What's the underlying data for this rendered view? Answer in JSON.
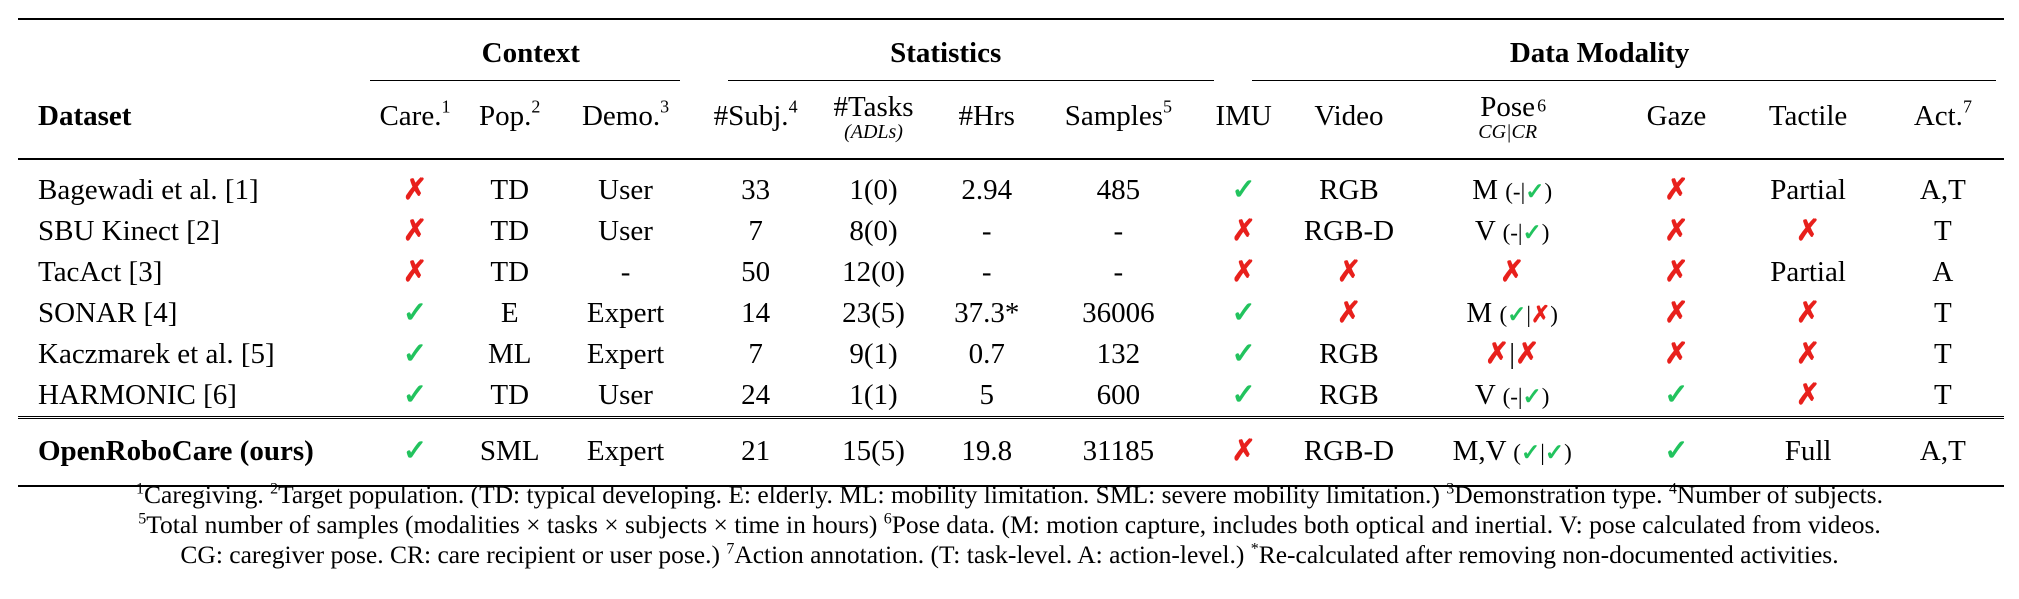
{
  "groups": {
    "context": "Context",
    "statistics": "Statistics",
    "modality": "Data Modality"
  },
  "headers": {
    "dataset": "Dataset",
    "care": "Care.",
    "care_sup": "1",
    "pop": "Pop.",
    "pop_sup": "2",
    "demo": "Demo.",
    "demo_sup": "3",
    "subj": "#Subj.",
    "subj_sup": "4",
    "tasks": "#Tasks",
    "tasks_sub": "(ADLs)",
    "hrs": "#Hrs",
    "samples": "Samples",
    "samples_sup": "5",
    "imu": "IMU",
    "video": "Video",
    "pose": "Pose",
    "pose_sub": "CG|CR",
    "pose_sup": "6",
    "gaze": "Gaze",
    "tactile": "Tactile",
    "act": "Act.",
    "act_sup": "7"
  },
  "symbols": {
    "check": "✓",
    "cross": "✗"
  },
  "rows": [
    {
      "name": "Bagewadi et al. [1]",
      "pop": "TD",
      "demo": "User",
      "subj": "33",
      "tasks": "1(0)",
      "hrs": "2.94",
      "samples": "485",
      "video": "RGB",
      "pose_main": "M",
      "pose_a": "-",
      "tactile": "Partial",
      "act": "A,T"
    },
    {
      "name": "SBU Kinect [2]",
      "pop": "TD",
      "demo": "User",
      "subj": "7",
      "tasks": "8(0)",
      "hrs": "-",
      "samples": "-",
      "video": "RGB-D",
      "pose_main": "V",
      "pose_a": "-",
      "act": "T"
    },
    {
      "name": "TacAct [3]",
      "pop": "TD",
      "demo": "-",
      "subj": "50",
      "tasks": "12(0)",
      "hrs": "-",
      "samples": "-",
      "tactile": "Partial",
      "act": "A"
    },
    {
      "name": "SONAR [4]",
      "pop": "E",
      "demo": "Expert",
      "subj": "14",
      "tasks": "23(5)",
      "hrs": "37.3*",
      "samples": "36006",
      "pose_main": "M",
      "act": "T"
    },
    {
      "name": "Kaczmarek et al. [5]",
      "pop": "ML",
      "demo": "Expert",
      "subj": "7",
      "tasks": "9(1)",
      "hrs": "0.7",
      "samples": "132",
      "video": "RGB",
      "act": "T"
    },
    {
      "name": "HARMONIC [6]",
      "pop": "TD",
      "demo": "User",
      "subj": "24",
      "tasks": "1(1)",
      "hrs": "5",
      "samples": "600",
      "video": "RGB",
      "pose_main": "V",
      "pose_a": "-",
      "act": "T"
    },
    {
      "name": "OpenRoboCare (ours)",
      "pop": "SML",
      "demo": "Expert",
      "subj": "21",
      "tasks": "15(5)",
      "hrs": "19.8",
      "samples": "31185",
      "video": "RGB-D",
      "pose_main": "M,V",
      "tactile": "Full",
      "act": "A,T"
    }
  ],
  "footnotes": {
    "n1": "1",
    "t1": "Caregiving. ",
    "n2": "2",
    "t2": "Target population. (TD: typical developing. E: elderly. ML: mobility limitation. SML: severe mobility limitation.) ",
    "n3": "3",
    "t3": "Demonstration type. ",
    "n4": "4",
    "t4": "Number of subjects.",
    "n5": "5",
    "t5": "Total number of samples (modalities × tasks × subjects × time in hours) ",
    "n6": "6",
    "t6": "Pose data. (M: motion capture, includes both optical and inertial. V: pose calculated from videos.",
    "t6b": "CG: caregiver pose. CR: care recipient or user pose.) ",
    "n7": "7",
    "t7": "Action annotation. (T: task-level. A: action-level.) ",
    "nstar": "*",
    "tstar": "Re-calculated after removing non-documented activities."
  }
}
